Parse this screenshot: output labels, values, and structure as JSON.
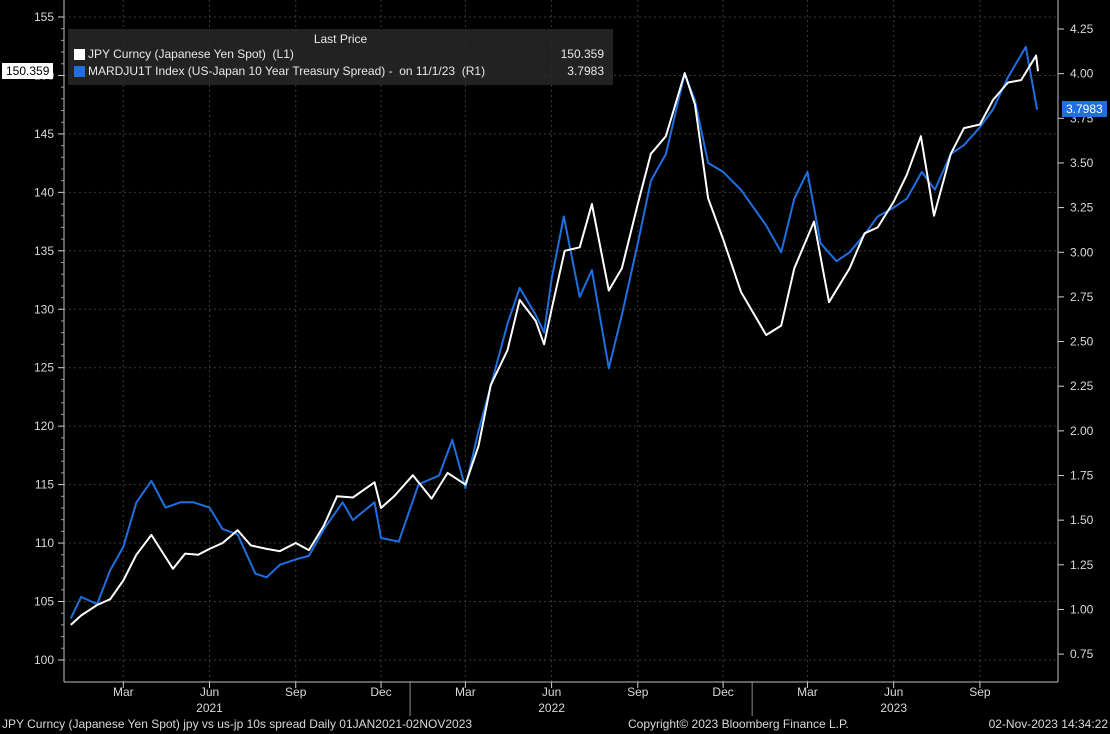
{
  "chart_data": {
    "type": "line",
    "x_range": [
      "2021-01-01",
      "2023-11-02"
    ],
    "left_axis": {
      "min": 100,
      "max": 155,
      "ticks": [
        100,
        105,
        110,
        115,
        120,
        125,
        130,
        135,
        140,
        145,
        150,
        155
      ]
    },
    "right_axis": {
      "min": 0.75,
      "max": 4.25,
      "ticks": [
        "0.75",
        "1.00",
        "1.25",
        "1.50",
        "1.75",
        "2.00",
        "2.25",
        "2.50",
        "2.75",
        "3.00",
        "3.25",
        "3.50",
        "3.75",
        "4.00",
        "4.25"
      ]
    },
    "month_labels": [
      {
        "date": "2021-03-01",
        "label": "Mar"
      },
      {
        "date": "2021-06-01",
        "label": "Jun"
      },
      {
        "date": "2021-09-01",
        "label": "Sep"
      },
      {
        "date": "2021-12-01",
        "label": "Dec"
      },
      {
        "date": "2022-03-01",
        "label": "Mar"
      },
      {
        "date": "2022-06-01",
        "label": "Jun"
      },
      {
        "date": "2022-09-01",
        "label": "Sep"
      },
      {
        "date": "2022-12-01",
        "label": "Dec"
      },
      {
        "date": "2023-03-01",
        "label": "Mar"
      },
      {
        "date": "2023-06-01",
        "label": "Jun"
      },
      {
        "date": "2023-09-01",
        "label": "Sep"
      }
    ],
    "year_labels": [
      {
        "date": "2021-06-01",
        "label": "2021"
      },
      {
        "date": "2022-06-01",
        "label": "2022"
      },
      {
        "date": "2023-06-01",
        "label": "2023"
      }
    ],
    "grid": true,
    "legend_header": "Last Price",
    "series": [
      {
        "name": "JPY Curncy (Japanese Yen Spot)  (L1)",
        "last_value": "150.359",
        "axis": "left",
        "color": "#ffffff",
        "points": [
          [
            "2021-01-04",
            103.0
          ],
          [
            "2021-01-15",
            103.8
          ],
          [
            "2021-02-01",
            104.7
          ],
          [
            "2021-02-15",
            105.2
          ],
          [
            "2021-03-01",
            106.8
          ],
          [
            "2021-03-15",
            109.0
          ],
          [
            "2021-03-31",
            110.7
          ],
          [
            "2021-04-15",
            108.8
          ],
          [
            "2021-04-23",
            107.8
          ],
          [
            "2021-05-06",
            109.1
          ],
          [
            "2021-05-20",
            109.0
          ],
          [
            "2021-06-01",
            109.5
          ],
          [
            "2021-06-15",
            110.0
          ],
          [
            "2021-07-01",
            111.1
          ],
          [
            "2021-07-15",
            109.8
          ],
          [
            "2021-08-01",
            109.5
          ],
          [
            "2021-08-15",
            109.3
          ],
          [
            "2021-09-01",
            110.0
          ],
          [
            "2021-09-15",
            109.4
          ],
          [
            "2021-10-01",
            111.5
          ],
          [
            "2021-10-15",
            114.0
          ],
          [
            "2021-11-01",
            113.9
          ],
          [
            "2021-11-24",
            115.2
          ],
          [
            "2021-12-01",
            113.0
          ],
          [
            "2021-12-15",
            114.0
          ],
          [
            "2022-01-04",
            115.8
          ],
          [
            "2022-01-24",
            113.8
          ],
          [
            "2022-02-10",
            116.0
          ],
          [
            "2022-03-01",
            115.0
          ],
          [
            "2022-03-15",
            118.3
          ],
          [
            "2022-03-28",
            123.5
          ],
          [
            "2022-04-15",
            126.5
          ],
          [
            "2022-04-28",
            130.8
          ],
          [
            "2022-05-15",
            129.0
          ],
          [
            "2022-05-24",
            127.0
          ],
          [
            "2022-06-01",
            130.0
          ],
          [
            "2022-06-15",
            135.0
          ],
          [
            "2022-07-01",
            135.3
          ],
          [
            "2022-07-14",
            139.0
          ],
          [
            "2022-08-01",
            131.6
          ],
          [
            "2022-08-15",
            133.5
          ],
          [
            "2022-09-01",
            139.0
          ],
          [
            "2022-09-15",
            143.3
          ],
          [
            "2022-10-01",
            144.8
          ],
          [
            "2022-10-21",
            150.2
          ],
          [
            "2022-11-01",
            147.5
          ],
          [
            "2022-11-15",
            139.5
          ],
          [
            "2022-12-01",
            136.0
          ],
          [
            "2022-12-20",
            131.5
          ],
          [
            "2023-01-16",
            127.8
          ],
          [
            "2023-02-01",
            128.6
          ],
          [
            "2023-02-15",
            133.5
          ],
          [
            "2023-03-08",
            137.5
          ],
          [
            "2023-03-24",
            130.6
          ],
          [
            "2023-04-15",
            133.5
          ],
          [
            "2023-05-01",
            136.5
          ],
          [
            "2023-05-15",
            137.0
          ],
          [
            "2023-06-01",
            139.2
          ],
          [
            "2023-06-15",
            141.5
          ],
          [
            "2023-06-30",
            144.8
          ],
          [
            "2023-07-14",
            138.0
          ],
          [
            "2023-08-01",
            143.3
          ],
          [
            "2023-08-15",
            145.5
          ],
          [
            "2023-09-01",
            145.8
          ],
          [
            "2023-09-15",
            147.9
          ],
          [
            "2023-10-01",
            149.4
          ],
          [
            "2023-10-15",
            149.6
          ],
          [
            "2023-10-31",
            151.7
          ],
          [
            "2023-11-02",
            150.359
          ]
        ]
      },
      {
        "name": "MARDJU1T Index (US-Japan 10 Year Treasury Spread) -  on 11/1/23  (R1)",
        "last_value": "3.7983",
        "axis": "right",
        "color": "#1f6fe0",
        "points": [
          [
            "2021-01-04",
            0.95
          ],
          [
            "2021-01-15",
            1.07
          ],
          [
            "2021-02-01",
            1.03
          ],
          [
            "2021-02-15",
            1.22
          ],
          [
            "2021-03-01",
            1.35
          ],
          [
            "2021-03-15",
            1.6
          ],
          [
            "2021-03-31",
            1.72
          ],
          [
            "2021-04-15",
            1.57
          ],
          [
            "2021-05-01",
            1.6
          ],
          [
            "2021-05-15",
            1.6
          ],
          [
            "2021-06-01",
            1.57
          ],
          [
            "2021-06-15",
            1.45
          ],
          [
            "2021-07-01",
            1.42
          ],
          [
            "2021-07-20",
            1.2
          ],
          [
            "2021-08-01",
            1.18
          ],
          [
            "2021-08-15",
            1.25
          ],
          [
            "2021-09-01",
            1.28
          ],
          [
            "2021-09-15",
            1.3
          ],
          [
            "2021-10-01",
            1.45
          ],
          [
            "2021-10-21",
            1.6
          ],
          [
            "2021-11-01",
            1.5
          ],
          [
            "2021-11-24",
            1.6
          ],
          [
            "2021-12-01",
            1.4
          ],
          [
            "2021-12-20",
            1.38
          ],
          [
            "2022-01-10",
            1.7
          ],
          [
            "2022-02-01",
            1.75
          ],
          [
            "2022-02-15",
            1.95
          ],
          [
            "2022-03-01",
            1.68
          ],
          [
            "2022-03-15",
            2.0
          ],
          [
            "2022-03-28",
            2.25
          ],
          [
            "2022-04-15",
            2.6
          ],
          [
            "2022-04-28",
            2.8
          ],
          [
            "2022-05-15",
            2.65
          ],
          [
            "2022-05-24",
            2.55
          ],
          [
            "2022-06-01",
            2.85
          ],
          [
            "2022-06-14",
            3.2
          ],
          [
            "2022-07-01",
            2.75
          ],
          [
            "2022-07-14",
            2.9
          ],
          [
            "2022-08-01",
            2.35
          ],
          [
            "2022-08-15",
            2.65
          ],
          [
            "2022-09-01",
            3.05
          ],
          [
            "2022-09-15",
            3.4
          ],
          [
            "2022-10-01",
            3.55
          ],
          [
            "2022-10-21",
            4.0
          ],
          [
            "2022-11-01",
            3.85
          ],
          [
            "2022-11-15",
            3.5
          ],
          [
            "2022-12-01",
            3.45
          ],
          [
            "2022-12-20",
            3.35
          ],
          [
            "2023-01-16",
            3.15
          ],
          [
            "2023-02-01",
            3.0
          ],
          [
            "2023-02-15",
            3.3
          ],
          [
            "2023-03-01",
            3.45
          ],
          [
            "2023-03-15",
            3.05
          ],
          [
            "2023-04-01",
            2.95
          ],
          [
            "2023-04-15",
            3.0
          ],
          [
            "2023-05-01",
            3.1
          ],
          [
            "2023-05-15",
            3.2
          ],
          [
            "2023-06-01",
            3.25
          ],
          [
            "2023-06-15",
            3.3
          ],
          [
            "2023-07-01",
            3.45
          ],
          [
            "2023-07-15",
            3.35
          ],
          [
            "2023-08-01",
            3.55
          ],
          [
            "2023-08-15",
            3.6
          ],
          [
            "2023-09-01",
            3.7
          ],
          [
            "2023-09-15",
            3.8
          ],
          [
            "2023-10-01",
            3.98
          ],
          [
            "2023-10-20",
            4.15
          ],
          [
            "2023-11-01",
            3.7983
          ]
        ]
      }
    ]
  },
  "footer": {
    "left": "JPY Curncy (Japanese Yen Spot) jpy vs us-jp 10s spread  Daily 01JAN2021-02NOV2023",
    "center": "Copyright© 2023 Bloomberg Finance L.P.",
    "right": "02-Nov-2023 14:34:22"
  }
}
